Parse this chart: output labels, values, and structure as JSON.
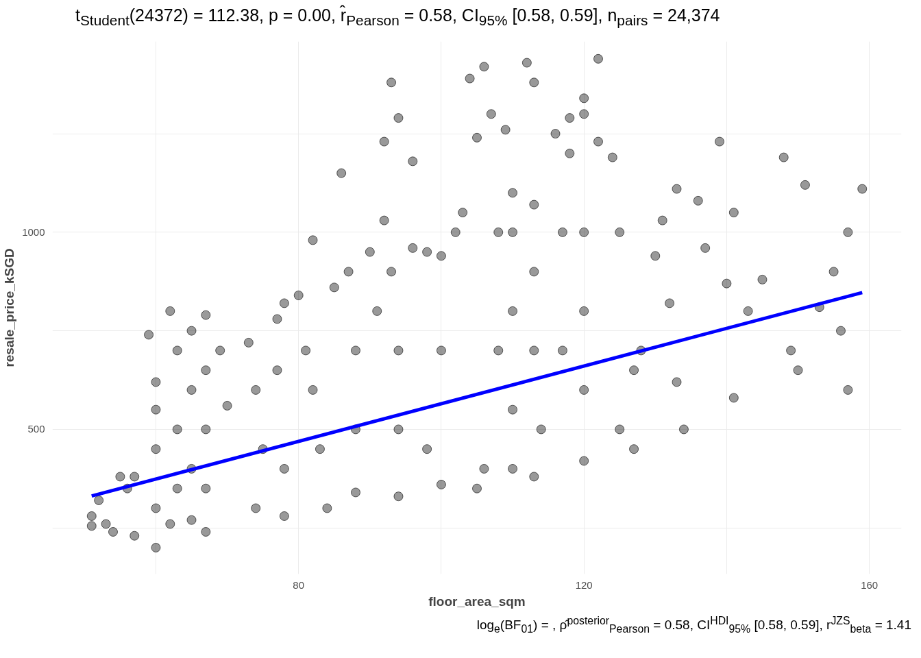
{
  "chart_data": {
    "type": "scatter",
    "title": "t$_{Student}$(24372) = 112.38, p = 0.00, r̂$_{Pearson}$ = 0.58, CI$_{95%}$ [0.58, 0.59], n$_{pairs}$ = 24,374",
    "xlabel": "floor_area_sqm",
    "ylabel": "resale_price_kSGD",
    "annotations": [
      "log$_{e}$(BF$_{01}$) = , ρ̂$^{posterior}$$_{Pearson}$ = 0.58, CI$^{HDI}$$_{95%}$ [0.58, 0.59], r$^{JZS}$$_{beta}$ = 1.41"
    ],
    "xlim": [
      45.5,
      164.5
    ],
    "ylim": [
      133,
      1484
    ],
    "xticks": [
      {
        "value": 60,
        "label": null
      },
      80,
      {
        "value": 100,
        "label": null
      },
      120,
      {
        "value": 140,
        "label": null
      },
      160
    ],
    "yticks": [
      {
        "value": 250,
        "label": null
      },
      500,
      {
        "value": 750,
        "label": null
      },
      1000,
      {
        "value": 1250,
        "label": null
      }
    ],
    "grid": true,
    "series": [
      {
        "marker": "circle",
        "color": "#000000",
        "x": [
          51,
          51,
          52,
          53,
          54,
          55,
          56,
          57,
          57,
          60,
          60,
          60,
          60,
          60,
          59,
          62,
          63,
          63,
          63,
          62,
          65,
          65,
          65,
          65,
          67,
          67,
          67,
          67,
          67,
          69,
          70,
          73,
          74,
          75,
          74,
          77,
          77,
          78,
          78,
          78,
          80,
          81,
          82,
          82,
          83,
          84,
          85,
          86,
          87,
          88,
          88,
          88,
          90,
          91,
          92,
          92,
          93,
          93,
          94,
          94,
          94,
          94,
          96,
          96,
          98,
          98,
          100,
          100,
          100,
          102,
          103,
          104,
          105,
          106,
          107,
          108,
          108,
          106,
          105,
          110,
          110,
          110,
          110,
          110,
          109,
          112,
          113,
          113,
          113,
          113,
          114,
          113,
          116,
          117,
          117,
          118,
          118,
          120,
          120,
          120,
          120,
          120,
          120,
          122,
          122,
          124,
          125,
          125,
          127,
          127,
          128,
          130,
          131,
          132,
          133,
          133,
          134,
          136,
          137,
          139,
          140,
          141,
          141,
          143,
          145,
          148,
          149,
          150,
          151,
          153,
          155,
          156,
          157,
          157,
          159
        ],
        "values": [
          280,
          255,
          320,
          260,
          240,
          380,
          350,
          230,
          380,
          200,
          300,
          450,
          550,
          620,
          740,
          800,
          700,
          500,
          350,
          260,
          750,
          600,
          400,
          270,
          790,
          650,
          500,
          350,
          240,
          700,
          560,
          720,
          600,
          450,
          300,
          780,
          650,
          280,
          820,
          400,
          840,
          700,
          980,
          600,
          450,
          300,
          860,
          1150,
          900,
          700,
          500,
          340,
          950,
          800,
          1230,
          1030,
          1380,
          900,
          1290,
          700,
          500,
          330,
          1180,
          960,
          950,
          450,
          940,
          700,
          360,
          1000,
          1050,
          1390,
          1240,
          1420,
          1300,
          1000,
          700,
          400,
          350,
          1100,
          1000,
          800,
          550,
          400,
          1260,
          1430,
          1380,
          1070,
          900,
          700,
          500,
          380,
          1250,
          1000,
          700,
          1290,
          1200,
          1340,
          1300,
          1000,
          800,
          600,
          420,
          1440,
          1230,
          1190,
          1000,
          500,
          650,
          450,
          700,
          940,
          1030,
          820,
          1110,
          620,
          500,
          1080,
          960,
          1230,
          870,
          1050,
          580,
          800,
          880,
          1190,
          700,
          650,
          1120,
          810,
          900,
          750,
          1000,
          600,
          1110
        ]
      },
      {
        "type": "line",
        "color": "#0000ff",
        "x": [
          51,
          159
        ],
        "values": [
          331,
          847
        ]
      }
    ]
  }
}
